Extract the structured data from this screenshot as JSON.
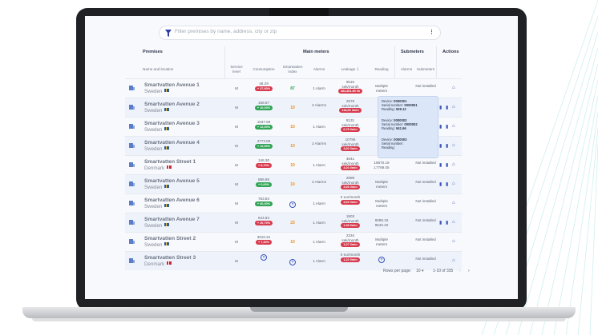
{
  "search": {
    "placeholder": "Filter premises by name, address, city or zip",
    "kebab": "⋮"
  },
  "groups": {
    "premises": "Premises",
    "main_meters": "Main meters",
    "submeters": "Submeters",
    "actions": "Actions"
  },
  "columns": {
    "name": "Name and location",
    "service_level": "Service level",
    "consumption": "Consumption",
    "smartvatten_index": "Smartvatten index",
    "alarms": "Alarms",
    "leakage": "Leakage ⇩",
    "reading": "Reading",
    "sub_alarms": "Alarms",
    "sub_submeters": "Submeters"
  },
  "rows": [
    {
      "name": "Smartvatten Avenue 1",
      "country": "Sweden",
      "flag": "se",
      "service": "M",
      "consumption": "48.29",
      "change": "+ 37,90%",
      "change_color": "red",
      "index": "87",
      "index_color": "g",
      "alarms": "1 Alarm",
      "leak": "9516",
      "leak_unit": "sek/month",
      "leak_pill": "384,381.89 l/h",
      "reading": "Multiple meters",
      "sub_alarms": "",
      "submeters": "Not installed",
      "actions": 1
    },
    {
      "name": "Smartvatten Avenue 2",
      "country": "Sweden",
      "flag": "se",
      "service": "M",
      "consumption": "168.87",
      "change": "+ 10,00%",
      "change_color": "green",
      "index": "10",
      "index_color": "o",
      "alarms": "2 Alarms",
      "leak": "2579",
      "leak_unit": "sek/month",
      "leak_pill": "118,00 l/min",
      "reading": "",
      "sub_alarms": "",
      "submeters": "",
      "actions": 3
    },
    {
      "name": "Smartvatten Avenue 3",
      "country": "Sweden",
      "flag": "se",
      "service": "M",
      "consumption": "1537.58",
      "change": "+ 12,00%",
      "change_color": "green",
      "index": "10",
      "index_color": "o",
      "alarms": "1 Alarm",
      "leak": "8131",
      "leak_unit": "sek/month",
      "leak_pill": "6,78 l/min",
      "reading": "",
      "sub_alarms": "",
      "submeters": "Not installed",
      "actions": 3
    },
    {
      "name": "Smartvatten Avenue 4",
      "country": "Sweden",
      "flag": "se",
      "service": "M",
      "consumption": "4773.59",
      "change": "+ 12,90%",
      "change_color": "green",
      "index": "10",
      "index_color": "o",
      "alarms": "2 Alarms",
      "leak": "10795",
      "leak_unit": "sek/month",
      "leak_pill": "3,60 l/min",
      "reading": "",
      "sub_alarms": "",
      "submeters": "Not installed",
      "actions": 3
    },
    {
      "name": "Smartvatten Street 1",
      "country": "Denmark",
      "flag": "dk",
      "service": "M",
      "consumption": "146.30",
      "change": "+ 8,70%",
      "change_color": "red",
      "index": "10",
      "index_color": "o",
      "alarms": "1 Alarm",
      "leak": "4641",
      "leak_unit": "sek/month",
      "leak_pill": "4,03 l/min",
      "reading": "18870.19\n17789.05",
      "sub_alarms": "",
      "submeters": "Not installed",
      "actions": 3
    },
    {
      "name": "Smartvatten Avenue 5",
      "country": "Sweden",
      "flag": "se",
      "service": "M",
      "consumption": "886.85",
      "change": "+ 0,00%",
      "change_color": "green",
      "index": "10",
      "index_color": "o",
      "alarms": "2 Alarms",
      "leak": "2899",
      "leak_unit": "sek/month",
      "leak_pill": "3,06 l/min",
      "reading": "Multiple meters",
      "sub_alarms": "",
      "submeters": "Not installed",
      "actions": 3
    },
    {
      "name": "Smartvatten Avenue 6",
      "country": "Sweden",
      "flag": "se",
      "service": "M",
      "consumption": "783.84",
      "change": "+ 40,30%",
      "change_color": "green",
      "index": "?",
      "index_color": "g",
      "alarms": "1 Alarm",
      "leak": "0 eur/month",
      "leak_unit": "",
      "leak_pill": "3,60 l/min",
      "reading": "Multiple meters",
      "sub_alarms": "",
      "submeters": "Not installed",
      "actions": 1
    },
    {
      "name": "Smartvatten Avenue 7",
      "country": "Sweden",
      "flag": "se",
      "service": "M",
      "consumption": "644.84",
      "change": "+ 20,70%",
      "change_color": "red",
      "index": "23",
      "index_color": "o",
      "alarms": "1 Alarm",
      "leak": "1903",
      "leak_unit": "sek/month",
      "leak_pill": "1,98 l/min",
      "reading": "6088.19\n9540.40",
      "sub_alarms": "",
      "submeters": "Not installed",
      "actions": 3
    },
    {
      "name": "Smartvatten Street 2",
      "country": "Sweden",
      "flag": "se",
      "service": "M",
      "consumption": "3010.31",
      "change": "+ 7,30%",
      "change_color": "red",
      "index": "10",
      "index_color": "o",
      "alarms": "1 Alarm",
      "leak": "2334",
      "leak_unit": "sek/month",
      "leak_pill": "1,07 l/min",
      "reading": "Multiple meters",
      "sub_alarms": "",
      "submeters": "Not installed",
      "actions": 1
    },
    {
      "name": "Smartvatten Street 3",
      "country": "Denmark",
      "flag": "dk",
      "service": "M",
      "consumption": "?",
      "change": "",
      "change_color": "green",
      "index": "?",
      "index_color": "g",
      "alarms": "1 Alarm",
      "leak": "0 eur/month",
      "leak_unit": "",
      "leak_pill": "1,22 l/min",
      "reading": "?",
      "sub_alarms": "",
      "submeters": "Not installed",
      "actions": 1
    }
  ],
  "popup": [
    {
      "device_label": "Device:",
      "device": "0000001",
      "serial_label": "Serial number:",
      "serial": "0000001",
      "reading_label": "Reading:",
      "reading": "929.12"
    },
    {
      "device_label": "Device:",
      "device": "0000002",
      "serial_label": "Serial number:",
      "serial": "0000002",
      "reading_label": "Reading:",
      "reading": "941.66"
    },
    {
      "device_label": "Device:",
      "device": "0000003",
      "serial_label": "Serial number:",
      "serial": "",
      "reading_label": "Reading:",
      "reading": ""
    }
  ],
  "pager": {
    "label": "Rows per page:",
    "value": "10",
    "range": "1-10 of 335"
  }
}
